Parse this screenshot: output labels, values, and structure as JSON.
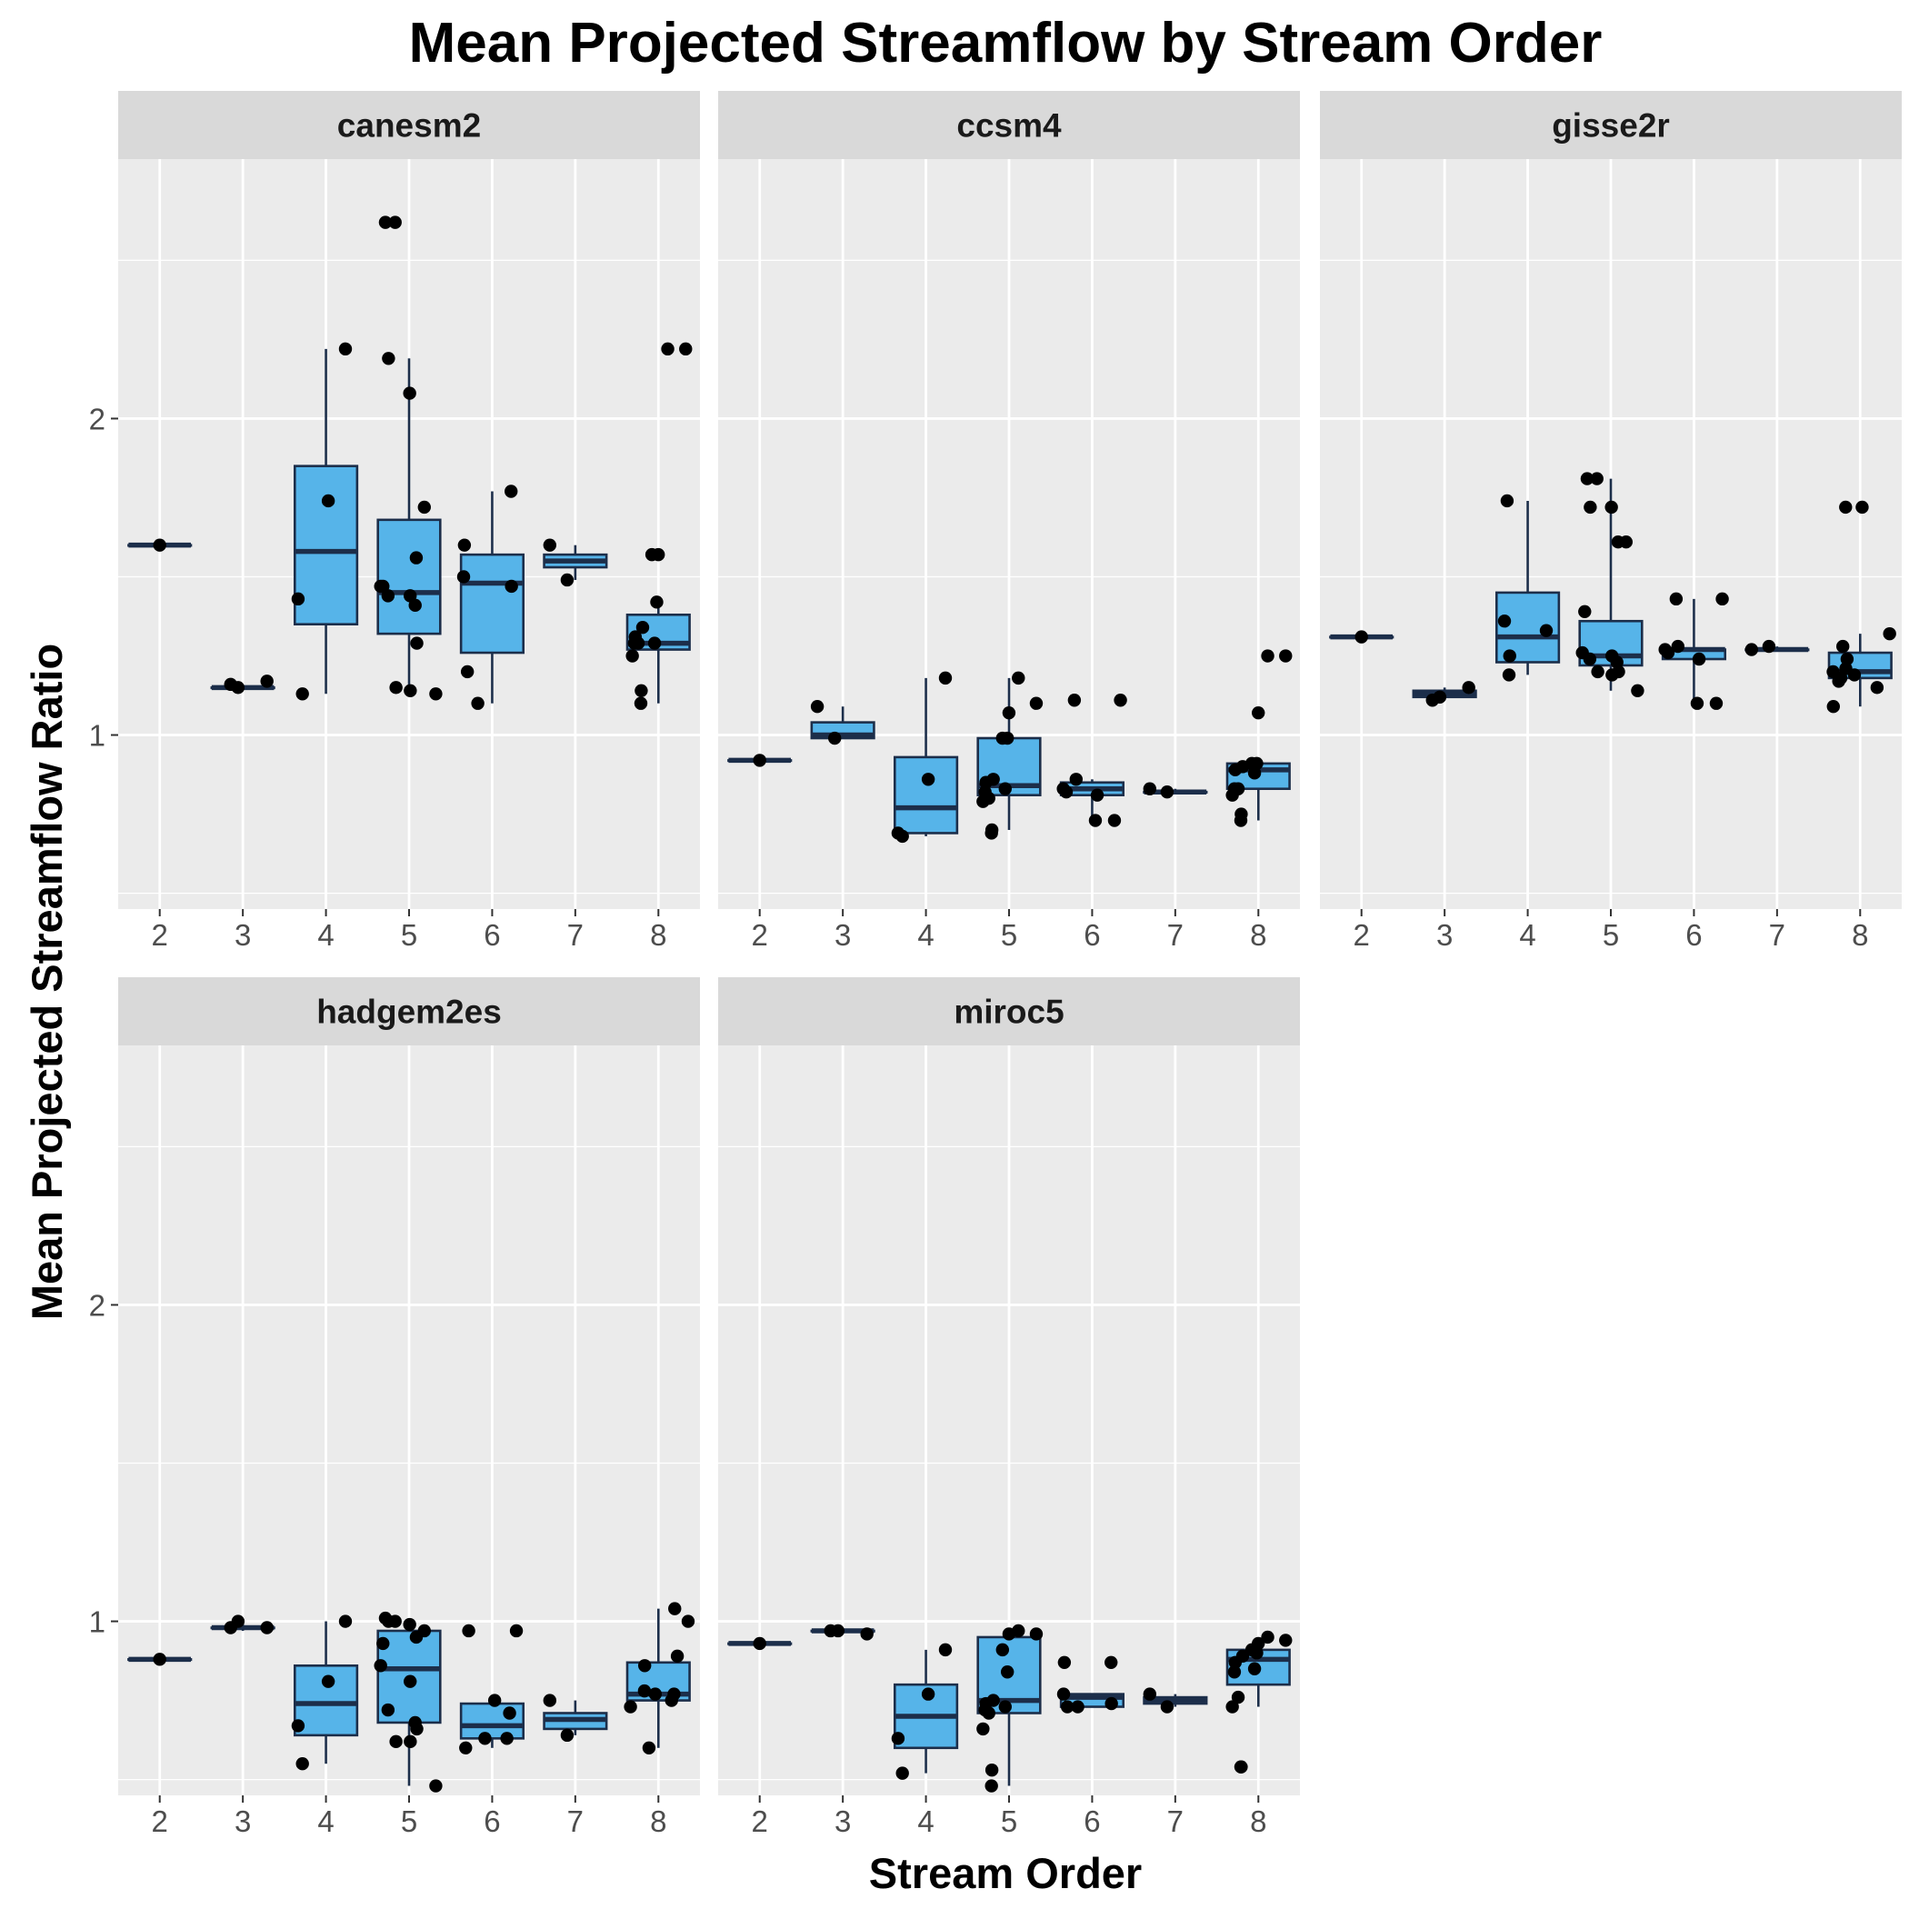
{
  "chart_data": {
    "type": "boxplot",
    "title": "Mean Projected Streamflow by Stream Order",
    "xlabel": "Stream Order",
    "ylabel": "Mean Projected Streamflow Ratio",
    "x_categories": [
      "2",
      "3",
      "4",
      "5",
      "6",
      "7",
      "8"
    ],
    "y_ticks": [
      1,
      2
    ],
    "ylim": [
      0.45,
      2.82
    ],
    "grid": true,
    "box_fill": "#56B4E9",
    "box_line": "#1c2e4a",
    "point_color": "#000000",
    "panel_bg": "#ebebeb",
    "strip_bg": "#d9d9d9",
    "panels": [
      {
        "name": "canesm2",
        "boxes": [
          {
            "x": "2",
            "q1": 1.6,
            "median": 1.6,
            "q3": 1.6,
            "min": 1.6,
            "max": 1.6
          },
          {
            "x": "3",
            "q1": 1.15,
            "median": 1.15,
            "q3": 1.15,
            "min": 1.15,
            "max": 1.15
          },
          {
            "x": "4",
            "q1": 1.35,
            "median": 1.58,
            "q3": 1.85,
            "min": 1.13,
            "max": 2.22
          },
          {
            "x": "5",
            "q1": 1.32,
            "median": 1.45,
            "q3": 1.68,
            "min": 1.13,
            "max": 2.19
          },
          {
            "x": "6",
            "q1": 1.26,
            "median": 1.48,
            "q3": 1.57,
            "min": 1.1,
            "max": 1.77
          },
          {
            "x": "7",
            "q1": 1.53,
            "median": 1.55,
            "q3": 1.57,
            "min": 1.49,
            "max": 1.6
          },
          {
            "x": "8",
            "q1": 1.27,
            "median": 1.29,
            "q3": 1.38,
            "min": 1.1,
            "max": 1.42
          }
        ],
        "points": [
          {
            "x": "2",
            "y": [
              1.6
            ]
          },
          {
            "x": "3",
            "y": [
              1.15,
              1.16,
              1.17
            ]
          },
          {
            "x": "4",
            "y": [
              2.22,
              1.74,
              1.43,
              1.13
            ]
          },
          {
            "x": "5",
            "y": [
              2.62,
              2.62,
              2.19,
              2.08,
              1.72,
              1.56,
              1.47,
              1.47,
              1.44,
              1.44,
              1.41,
              1.29,
              1.15,
              1.14,
              1.13
            ]
          },
          {
            "x": "6",
            "y": [
              1.77,
              1.6,
              1.5,
              1.47,
              1.2,
              1.1
            ]
          },
          {
            "x": "7",
            "y": [
              1.6,
              1.49
            ]
          },
          {
            "x": "8",
            "y": [
              2.22,
              2.22,
              1.57,
              1.57,
              1.42,
              1.34,
              1.31,
              1.29,
              1.29,
              1.29,
              1.25,
              1.14,
              1.1
            ]
          }
        ]
      },
      {
        "name": "ccsm4",
        "boxes": [
          {
            "x": "2",
            "q1": 0.92,
            "median": 0.92,
            "q3": 0.92,
            "min": 0.92,
            "max": 0.92
          },
          {
            "x": "3",
            "q1": 0.99,
            "median": 1.0,
            "q3": 1.04,
            "min": 0.99,
            "max": 1.09
          },
          {
            "x": "4",
            "q1": 0.69,
            "median": 0.77,
            "q3": 0.93,
            "min": 0.68,
            "max": 1.18
          },
          {
            "x": "5",
            "q1": 0.81,
            "median": 0.84,
            "q3": 0.99,
            "min": 0.7,
            "max": 1.18
          },
          {
            "x": "6",
            "q1": 0.81,
            "median": 0.83,
            "q3": 0.85,
            "min": 0.73,
            "max": 0.86
          },
          {
            "x": "7",
            "q1": 0.82,
            "median": 0.82,
            "q3": 0.82,
            "min": 0.82,
            "max": 0.83
          },
          {
            "x": "8",
            "q1": 0.83,
            "median": 0.89,
            "q3": 0.91,
            "min": 0.73,
            "max": 0.91
          }
        ],
        "points": [
          {
            "x": "2",
            "y": [
              0.92
            ]
          },
          {
            "x": "3",
            "y": [
              1.09,
              0.99
            ]
          },
          {
            "x": "4",
            "y": [
              1.18,
              0.86,
              0.69,
              0.68
            ]
          },
          {
            "x": "5",
            "y": [
              1.18,
              1.1,
              1.07,
              0.99,
              0.99,
              0.86,
              0.85,
              0.83,
              0.82,
              0.8,
              0.79,
              0.7,
              0.69
            ]
          },
          {
            "x": "6",
            "y": [
              1.11,
              1.11,
              0.86,
              0.83,
              0.82,
              0.81,
              0.73,
              0.73
            ]
          },
          {
            "x": "7",
            "y": [
              0.83,
              0.82
            ]
          },
          {
            "x": "8",
            "y": [
              1.25,
              1.25,
              1.07,
              0.91,
              0.91,
              0.9,
              0.89,
              0.88,
              0.83,
              0.83,
              0.81,
              0.75,
              0.73
            ]
          }
        ]
      },
      {
        "name": "gisse2r",
        "boxes": [
          {
            "x": "2",
            "q1": 1.31,
            "median": 1.31,
            "q3": 1.31,
            "min": 1.31,
            "max": 1.31
          },
          {
            "x": "3",
            "q1": 1.12,
            "median": 1.13,
            "q3": 1.14,
            "min": 1.11,
            "max": 1.15
          },
          {
            "x": "4",
            "q1": 1.23,
            "median": 1.31,
            "q3": 1.45,
            "min": 1.19,
            "max": 1.74
          },
          {
            "x": "5",
            "q1": 1.22,
            "median": 1.25,
            "q3": 1.36,
            "min": 1.14,
            "max": 1.81
          },
          {
            "x": "6",
            "q1": 1.24,
            "median": 1.27,
            "q3": 1.27,
            "min": 1.1,
            "max": 1.43
          },
          {
            "x": "7",
            "q1": 1.27,
            "median": 1.27,
            "q3": 1.27,
            "min": 1.27,
            "max": 1.28
          },
          {
            "x": "8",
            "q1": 1.18,
            "median": 1.2,
            "q3": 1.26,
            "min": 1.09,
            "max": 1.32
          }
        ],
        "points": [
          {
            "x": "2",
            "y": [
              1.31
            ]
          },
          {
            "x": "3",
            "y": [
              1.12,
              1.11,
              1.15
            ]
          },
          {
            "x": "4",
            "y": [
              1.74,
              1.36,
              1.33,
              1.25,
              1.19
            ]
          },
          {
            "x": "5",
            "y": [
              1.81,
              1.81,
              1.72,
              1.72,
              1.61,
              1.61,
              1.39,
              1.26,
              1.25,
              1.24,
              1.23,
              1.2,
              1.2,
              1.19,
              1.14
            ]
          },
          {
            "x": "6",
            "y": [
              1.43,
              1.43,
              1.28,
              1.27,
              1.26,
              1.24,
              1.1,
              1.1
            ]
          },
          {
            "x": "7",
            "y": [
              1.27,
              1.28
            ]
          },
          {
            "x": "8",
            "y": [
              1.72,
              1.72,
              1.32,
              1.28,
              1.24,
              1.21,
              1.2,
              1.19,
              1.18,
              1.17,
              1.15,
              1.09
            ]
          }
        ]
      },
      {
        "name": "hadgem2es",
        "boxes": [
          {
            "x": "2",
            "q1": 0.88,
            "median": 0.88,
            "q3": 0.88,
            "min": 0.88,
            "max": 0.88
          },
          {
            "x": "3",
            "q1": 0.98,
            "median": 0.98,
            "q3": 0.98,
            "min": 0.97,
            "max": 1.0
          },
          {
            "x": "4",
            "q1": 0.64,
            "median": 0.74,
            "q3": 0.86,
            "min": 0.55,
            "max": 1.0
          },
          {
            "x": "5",
            "q1": 0.68,
            "median": 0.85,
            "q3": 0.97,
            "min": 0.48,
            "max": 1.01
          },
          {
            "x": "6",
            "q1": 0.63,
            "median": 0.67,
            "q3": 0.74,
            "min": 0.6,
            "max": 0.75
          },
          {
            "x": "7",
            "q1": 0.66,
            "median": 0.69,
            "q3": 0.71,
            "min": 0.64,
            "max": 0.75
          },
          {
            "x": "8",
            "q1": 0.75,
            "median": 0.77,
            "q3": 0.87,
            "min": 0.6,
            "max": 1.04
          }
        ],
        "points": [
          {
            "x": "2",
            "y": [
              0.88
            ]
          },
          {
            "x": "3",
            "y": [
              1.0,
              0.98,
              0.98
            ]
          },
          {
            "x": "4",
            "y": [
              1.0,
              0.81,
              0.67,
              0.55
            ]
          },
          {
            "x": "5",
            "y": [
              1.01,
              1.0,
              1.0,
              0.99,
              0.97,
              0.95,
              0.93,
              0.86,
              0.81,
              0.72,
              0.68,
              0.66,
              0.62,
              0.62,
              0.48
            ]
          },
          {
            "x": "6",
            "y": [
              0.97,
              0.97,
              0.75,
              0.71,
              0.63,
              0.63,
              0.6
            ]
          },
          {
            "x": "7",
            "y": [
              0.75,
              0.64
            ]
          },
          {
            "x": "8",
            "y": [
              1.04,
              1.0,
              0.89,
              0.86,
              0.78,
              0.77,
              0.77,
              0.75,
              0.73,
              0.6
            ]
          }
        ]
      },
      {
        "name": "miroc5",
        "boxes": [
          {
            "x": "2",
            "q1": 0.93,
            "median": 0.93,
            "q3": 0.93,
            "min": 0.93,
            "max": 0.93
          },
          {
            "x": "3",
            "q1": 0.97,
            "median": 0.97,
            "q3": 0.97,
            "min": 0.96,
            "max": 0.97
          },
          {
            "x": "4",
            "q1": 0.6,
            "median": 0.7,
            "q3": 0.8,
            "min": 0.52,
            "max": 0.91
          },
          {
            "x": "5",
            "q1": 0.71,
            "median": 0.75,
            "q3": 0.95,
            "min": 0.48,
            "max": 0.97
          },
          {
            "x": "6",
            "q1": 0.73,
            "median": 0.76,
            "q3": 0.77,
            "min": 0.73,
            "max": 0.77
          },
          {
            "x": "7",
            "q1": 0.74,
            "median": 0.75,
            "q3": 0.76,
            "min": 0.73,
            "max": 0.77
          },
          {
            "x": "8",
            "q1": 0.8,
            "median": 0.88,
            "q3": 0.91,
            "min": 0.73,
            "max": 0.95
          }
        ],
        "points": [
          {
            "x": "2",
            "y": [
              0.93
            ]
          },
          {
            "x": "3",
            "y": [
              0.97,
              0.97,
              0.96
            ]
          },
          {
            "x": "4",
            "y": [
              0.91,
              0.77,
              0.63,
              0.52
            ]
          },
          {
            "x": "5",
            "y": [
              0.97,
              0.96,
              0.96,
              0.91,
              0.84,
              0.75,
              0.74,
              0.73,
              0.72,
              0.71,
              0.66,
              0.53,
              0.48
            ]
          },
          {
            "x": "6",
            "y": [
              0.87,
              0.87,
              0.77,
              0.74,
              0.73,
              0.73
            ]
          },
          {
            "x": "7",
            "y": [
              0.77,
              0.73
            ]
          },
          {
            "x": "8",
            "y": [
              0.95,
              0.94,
              0.93,
              0.91,
              0.9,
              0.89,
              0.87,
              0.85,
              0.84,
              0.76,
              0.73,
              0.54,
              0.54
            ]
          }
        ]
      }
    ]
  }
}
